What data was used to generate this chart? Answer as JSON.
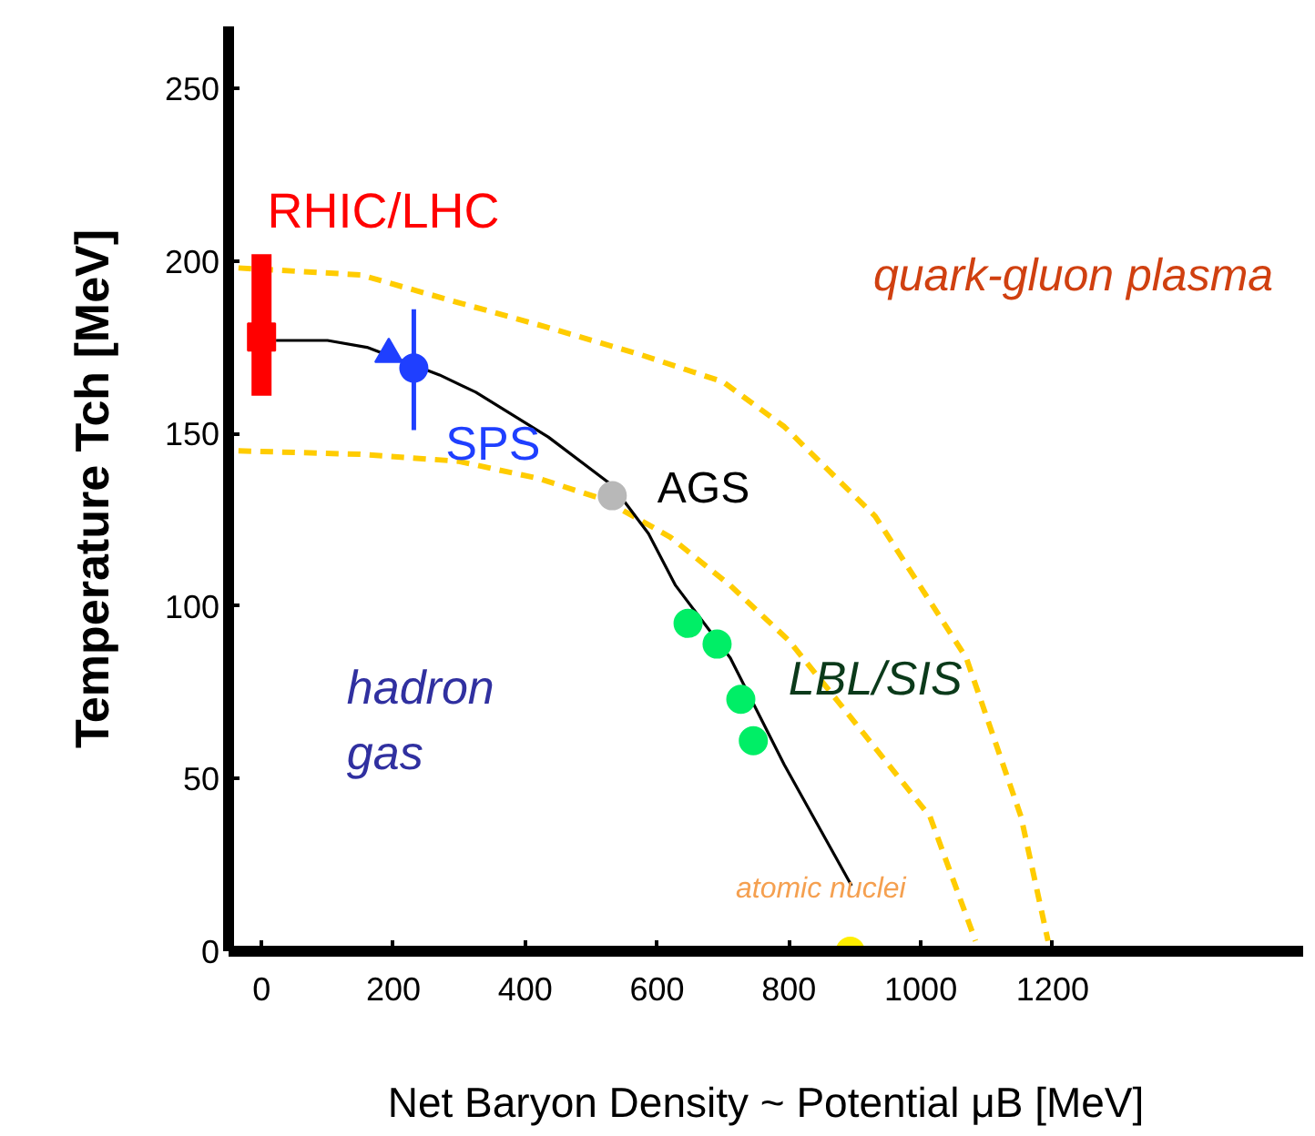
{
  "chart_data": {
    "type": "scatter",
    "xlabel": "Net Baryon Density ~ Potential μB [MeV]",
    "ylabel": "Temperature Tch [MeV]",
    "xlim": [
      -50,
      1580
    ],
    "ylim": [
      0,
      268
    ],
    "xticks": [
      0,
      200,
      400,
      600,
      800,
      1000,
      1200
    ],
    "yticks": [
      0,
      50,
      100,
      150,
      200,
      250
    ],
    "grid": false,
    "series": [
      {
        "type": "line",
        "color": "#ffcc00",
        "line_style": "dashed",
        "x": [
          -35,
          150,
          298,
          430,
          573,
          700,
          793,
          931,
          1069,
          1152,
          1193
        ],
        "values": [
          198,
          196,
          188,
          181,
          173,
          165,
          152,
          126,
          85,
          39,
          3
        ]
      },
      {
        "type": "line",
        "color": "#ffcc00",
        "line_style": "dashed",
        "x": [
          -35,
          150,
          298,
          420,
          518,
          620,
          711,
          800,
          876,
          1014,
          1083
        ],
        "values": [
          145,
          144,
          142,
          137,
          131,
          120,
          106,
          90,
          72,
          39,
          3
        ]
      },
      {
        "type": "line",
        "color": "#000000",
        "line_style": "solid",
        "x": [
          22,
          100,
          160,
          270,
          325,
          435,
          532,
          587,
          628,
          711,
          793,
          895
        ],
        "values": [
          177,
          177,
          175,
          167,
          162,
          149,
          135,
          121,
          106,
          85,
          54,
          19
        ]
      },
      {
        "color": "#ff0000",
        "marker": "square",
        "x": [
          0
        ],
        "values": [
          178
        ],
        "errors": [
          [
            161,
            202
          ]
        ]
      },
      {
        "color": "#1f3fff",
        "marker": "triangle",
        "x": [
          193
        ],
        "values": [
          173
        ]
      },
      {
        "color": "#1f3fff",
        "marker": "circle",
        "x": [
          231
        ],
        "values": [
          169
        ],
        "errors": [
          [
            151,
            186
          ]
        ]
      },
      {
        "color": "#b8b8b8",
        "marker": "circle",
        "x": [
          532
        ],
        "values": [
          132
        ]
      },
      {
        "color": "#00ee66",
        "marker": "circle",
        "x": [
          647,
          691,
          727,
          746
        ],
        "values": [
          95,
          89,
          73,
          61
        ]
      },
      {
        "color": "#ffee00",
        "marker": "circle",
        "x": [
          893
        ],
        "values": [
          0
        ]
      }
    ],
    "annotations": [
      "RHIC/LHC",
      "SPS",
      "AGS",
      "LBL/SIS",
      "atomic nuclei",
      "quark-gluon plasma",
      "hadron\ngas"
    ]
  }
}
